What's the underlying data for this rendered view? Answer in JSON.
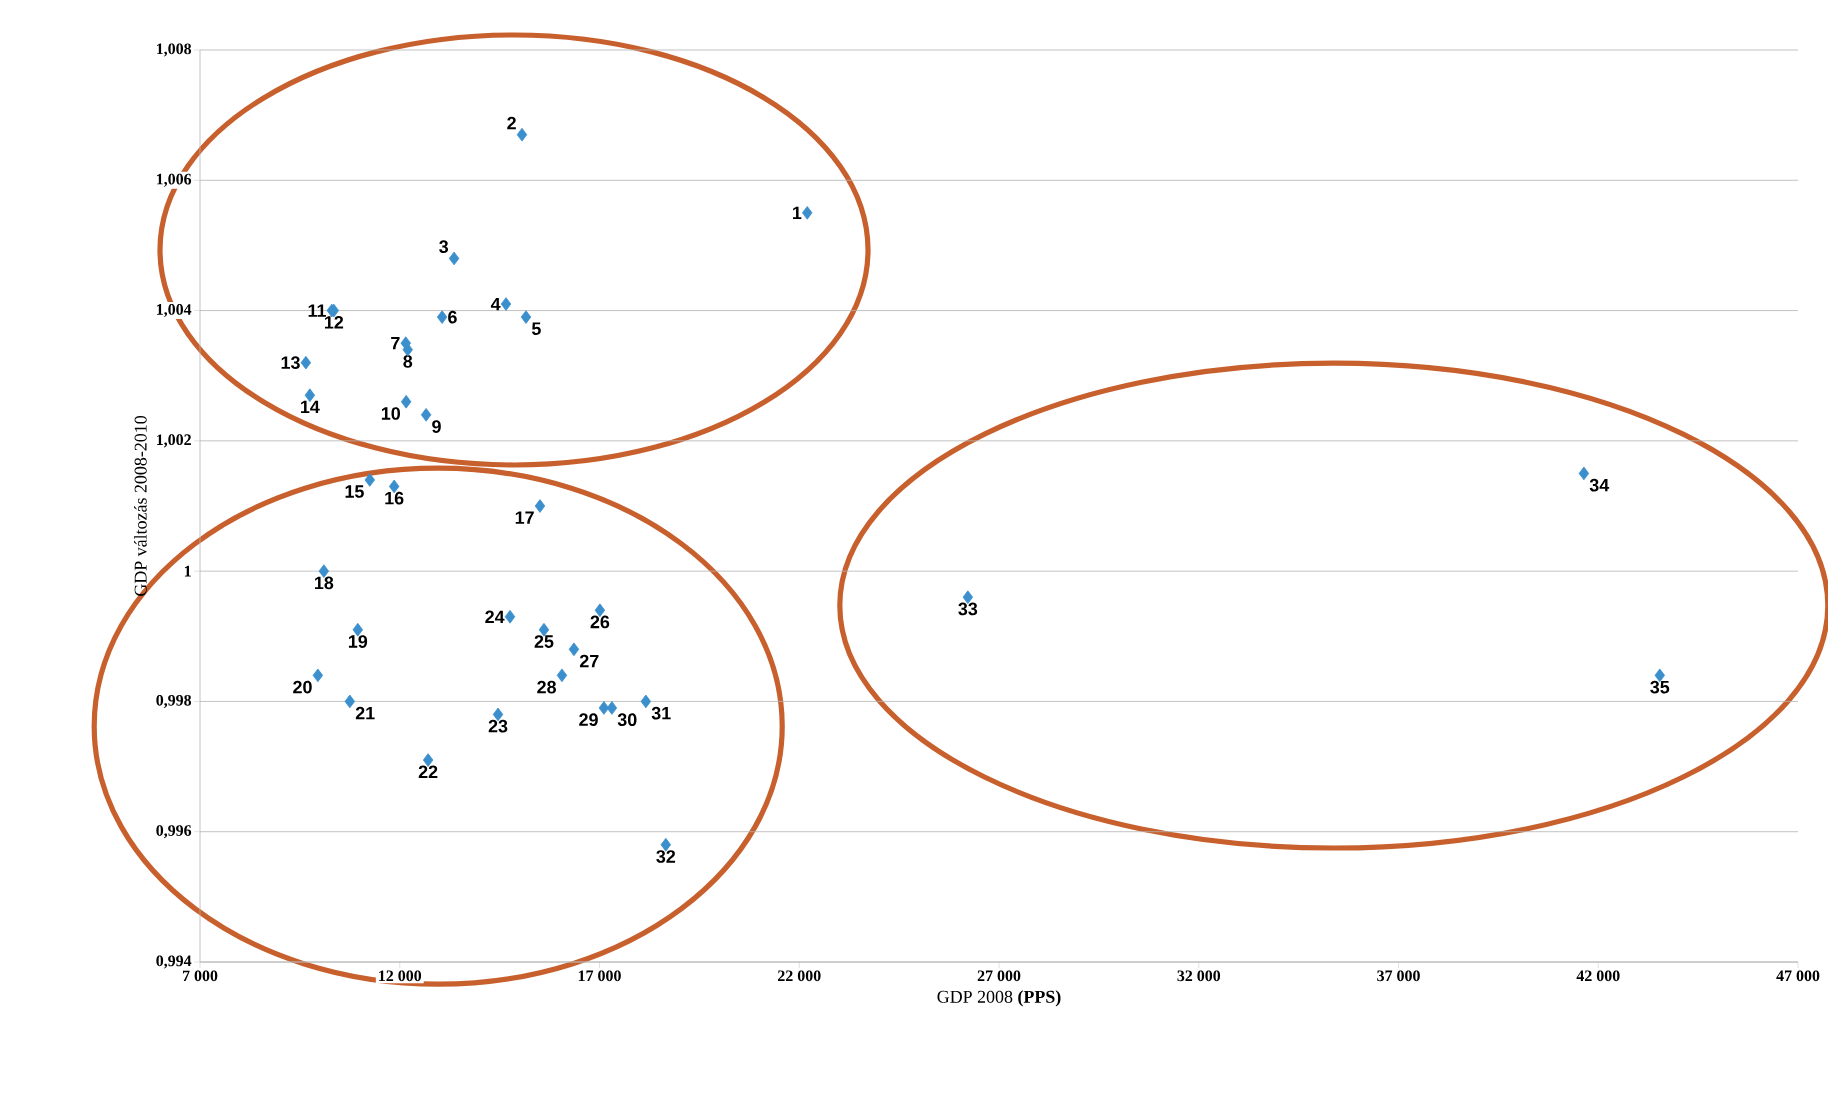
{
  "chart_data": {
    "type": "scatter",
    "xlabel": "GDP 2008 **(PPS)**",
    "ylabel": "GDP változás 2008-2010",
    "color": "#3b8fcd",
    "marker": "diamond",
    "grid": "y",
    "xlim": [
      7000,
      47000
    ],
    "ylim": [
      0.994,
      1.008
    ],
    "xticks": [
      {
        "value": 7000,
        "label": "7 000"
      },
      {
        "value": 12000,
        "label": "12 000"
      },
      {
        "value": 17000,
        "label": "17 000"
      },
      {
        "value": 22000,
        "label": "22 000"
      },
      {
        "value": 27000,
        "label": "27 000"
      },
      {
        "value": 32000,
        "label": "32 000"
      },
      {
        "value": 37000,
        "label": "37 000"
      },
      {
        "value": 42000,
        "label": "42 000"
      },
      {
        "value": 47000,
        "label": "47 000"
      }
    ],
    "yticks": [
      {
        "value": 0.994,
        "label": "0,994"
      },
      {
        "value": 0.996,
        "label": "0,996"
      },
      {
        "value": 0.998,
        "label": "0,998"
      },
      1,
      {
        "value": 1.002,
        "label": "1,002"
      },
      {
        "value": 1.004,
        "label": "1,004"
      },
      {
        "value": 1.006,
        "label": "1,006"
      },
      {
        "value": 1.008,
        "label": "1,008"
      }
    ],
    "x": [
      22200,
      15060,
      13360,
      14660,
      15160,
      13060,
      12150,
      12200,
      12660,
      12160,
      10300,
      10350,
      9650,
      9750,
      11250,
      11860,
      15510,
      10100,
      10950,
      9950,
      10750,
      12710,
      14460,
      14760,
      15610,
      17010,
      16360,
      16060,
      17110,
      17310,
      18160,
      18660,
      26220,
      41640,
      43540
    ],
    "values": [
      1.0055,
      1.0067,
      1.0048,
      1.0041,
      1.0039,
      1.0039,
      1.0035,
      1.0034,
      1.0024,
      1.0026,
      1.004,
      1.004,
      1.0032,
      1.0027,
      1.0014,
      1.0013,
      1.001,
      1.0,
      0.9991,
      0.9984,
      0.998,
      0.9971,
      0.9978,
      0.9993,
      0.9991,
      0.9994,
      0.9988,
      0.9984,
      0.9979,
      0.9979,
      0.998,
      0.9958,
      0.9996,
      1.0015,
      0.9984
    ],
    "annotations": [
      {
        "text": "1",
        "x": 22200,
        "y": 1.0055
      },
      {
        "text": "2",
        "x": 15060,
        "y": 1.0067
      },
      {
        "text": "3",
        "x": 13360,
        "y": 1.0048
      },
      {
        "text": "4",
        "x": 14660,
        "y": 1.0041
      },
      {
        "text": "5",
        "x": 15160,
        "y": 1.0039
      },
      {
        "text": "6",
        "x": 13060,
        "y": 1.0039
      },
      {
        "text": "7",
        "x": 12150,
        "y": 1.0035
      },
      {
        "text": "8",
        "x": 12200,
        "y": 1.0034
      },
      {
        "text": "9",
        "x": 12660,
        "y": 1.0024
      },
      {
        "text": "10",
        "x": 12160,
        "y": 1.0026
      },
      {
        "text": "11",
        "x": 10300,
        "y": 1.004
      },
      {
        "text": "12",
        "x": 10350,
        "y": 1.004
      },
      {
        "text": "13",
        "x": 9650,
        "y": 1.0032
      },
      {
        "text": "14",
        "x": 9750,
        "y": 1.0027
      },
      {
        "text": "15",
        "x": 11250,
        "y": 1.0014
      },
      {
        "text": "16",
        "x": 11860,
        "y": 1.0013
      },
      {
        "text": "17",
        "x": 15510,
        "y": 1.001
      },
      {
        "text": "18",
        "x": 10100,
        "y": 1.0
      },
      {
        "text": "19",
        "x": 10950,
        "y": 0.9991
      },
      {
        "text": "20",
        "x": 9950,
        "y": 0.9984
      },
      {
        "text": "21",
        "x": 10750,
        "y": 0.998
      },
      {
        "text": "22",
        "x": 12710,
        "y": 0.9971
      },
      {
        "text": "23",
        "x": 14460,
        "y": 0.9978
      },
      {
        "text": "24",
        "x": 14760,
        "y": 0.9993
      },
      {
        "text": "25",
        "x": 15610,
        "y": 0.9991
      },
      {
        "text": "26",
        "x": 17010,
        "y": 0.9994
      },
      {
        "text": "27",
        "x": 16360,
        "y": 0.9988
      },
      {
        "text": "28",
        "x": 16060,
        "y": 0.9984
      },
      {
        "text": "29",
        "x": 17110,
        "y": 0.9979
      },
      {
        "text": "30",
        "x": 17310,
        "y": 0.9979
      },
      {
        "text": "31",
        "x": 18160,
        "y": 0.998
      },
      {
        "text": "32",
        "x": 18660,
        "y": 0.9958
      },
      {
        "text": "33",
        "x": 26220,
        "y": 0.9996
      },
      {
        "text": "34",
        "x": 41640,
        "y": 1.0015
      },
      {
        "text": "35",
        "x": 43540,
        "y": 0.9984
      }
    ]
  }
}
